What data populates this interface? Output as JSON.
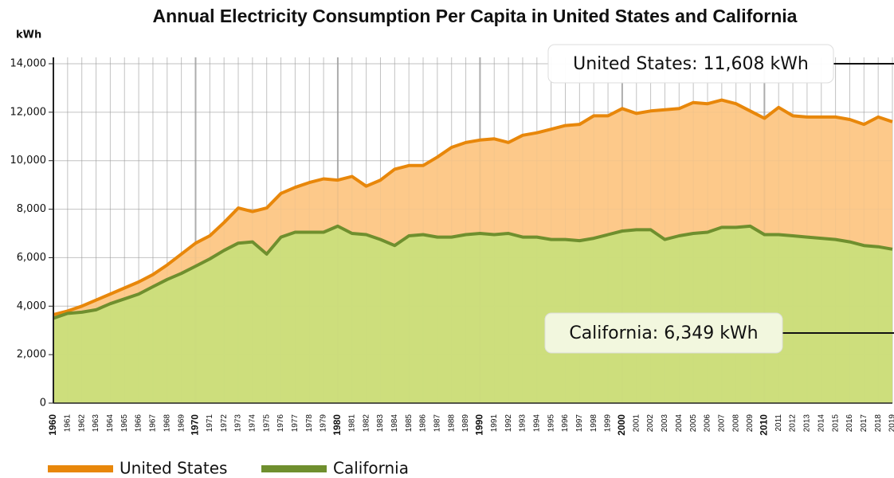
{
  "chart_data": {
    "type": "area",
    "title": "Annual Electricity Consumption Per Capita in United States and California",
    "y_axis_label": "kWh",
    "categories": [
      "1960",
      "1961",
      "1962",
      "1963",
      "1964",
      "1965",
      "1966",
      "1967",
      "1968",
      "1969",
      "1970",
      "1971",
      "1972",
      "1973",
      "1974",
      "1975",
      "1976",
      "1977",
      "1978",
      "1979",
      "1980",
      "1981",
      "1982",
      "1983",
      "1984",
      "1985",
      "1986",
      "1987",
      "1988",
      "1989",
      "1990",
      "1991",
      "1992",
      "1993",
      "1994",
      "1995",
      "1996",
      "1997",
      "1998",
      "1999",
      "2000",
      "2001",
      "2002",
      "2003",
      "2004",
      "2005",
      "2006",
      "2007",
      "2008",
      "2009",
      "2010",
      "2011",
      "2012",
      "2013",
      "2014",
      "2015",
      "2016",
      "2017",
      "2018",
      "2019"
    ],
    "series": [
      {
        "name": "United States",
        "color": "#e8870a",
        "fill": "#fdc98a",
        "values": [
          3650,
          3800,
          4000,
          4250,
          4500,
          4750,
          5000,
          5300,
          5700,
          6150,
          6600,
          6900,
          7450,
          8050,
          7900,
          8050,
          8650,
          8900,
          9100,
          9250,
          9200,
          9350,
          8950,
          9200,
          9650,
          9800,
          9800,
          10150,
          10550,
          10750,
          10850,
          10900,
          10750,
          11050,
          11150,
          11300,
          11450,
          11500,
          11850,
          11850,
          12150,
          11950,
          12050,
          12100,
          12150,
          12400,
          12350,
          12500,
          12350,
          12050,
          11750,
          12200,
          11850,
          11800,
          11800,
          11800,
          11700,
          11500,
          11800,
          11608
        ]
      },
      {
        "name": "California",
        "color": "#6f8f2e",
        "fill": "#c5e07a",
        "values": [
          3500,
          3700,
          3750,
          3850,
          4100,
          4300,
          4500,
          4800,
          5100,
          5350,
          5650,
          5950,
          6300,
          6600,
          6650,
          6150,
          6850,
          7050,
          7050,
          7050,
          7300,
          7000,
          6950,
          6750,
          6500,
          6900,
          6950,
          6850,
          6850,
          6950,
          7000,
          6950,
          7000,
          6850,
          6850,
          6750,
          6750,
          6700,
          6800,
          6950,
          7100,
          7150,
          7150,
          6750,
          6900,
          7000,
          7050,
          7250,
          7250,
          7300,
          6950,
          6950,
          6900,
          6850,
          6800,
          6750,
          6650,
          6500,
          6450,
          6349
        ]
      }
    ],
    "annotations": [
      "United States: 11,608 kWh",
      "California: 6,349 kWh"
    ],
    "ylim": [
      0,
      14000
    ],
    "yticks": [
      0,
      {
        "value": 2000,
        "label": "2,000"
      },
      {
        "value": 4000,
        "label": "4,000"
      },
      {
        "value": 6000,
        "label": "6,000"
      },
      {
        "value": 8000,
        "label": "8,000"
      },
      {
        "value": 10000,
        "label": "10,000"
      },
      {
        "value": 12000,
        "label": "12,000"
      },
      {
        "value": 14000,
        "label": "14,000"
      }
    ],
    "grid": true,
    "legend": "bottom"
  }
}
